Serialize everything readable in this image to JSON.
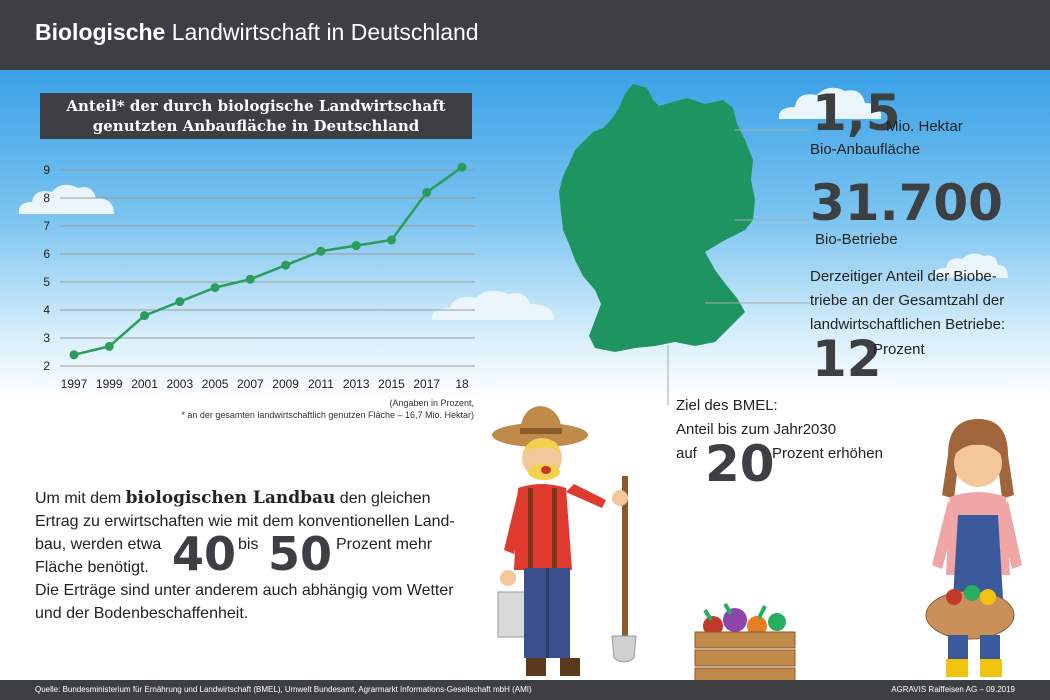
{
  "header": {
    "title_bold": "Biologische",
    "title_rest": " Landwirtschaft in Deutschland"
  },
  "chart_data": {
    "type": "line",
    "title": "Anteil* der durch biologische Landwirtschaft genutzten Anbaufläche in Deutschland",
    "title_line1": "Anteil* der durch biologische Landwirtschaft",
    "title_line2": "genutzten Anbaufläche in Deutschland",
    "categories": [
      "1997",
      "1999",
      "2001",
      "2003",
      "2005",
      "2007",
      "2009",
      "2011",
      "2013",
      "2015",
      "2017",
      "18"
    ],
    "series": [
      {
        "values": [
          2.4,
          2.7,
          3.8,
          4.3,
          4.8,
          5.1,
          5.6,
          6.1,
          6.3,
          6.5,
          8.2,
          9.1
        ]
      }
    ],
    "ylim": [
      2,
      9
    ],
    "yticks": [
      "2",
      "3",
      "4",
      "5",
      "6",
      "7",
      "8",
      "9"
    ],
    "grid": true,
    "line_color": "#2a9d5c",
    "note_line1": "(Angaben in  Prozent,",
    "note_line2": "* an der gesamten landwirtschaftlich genutzen Fläche – 16,7 Mio. Hektar)"
  },
  "stats": {
    "area_value": "1,5",
    "area_unit": "Mio. Hektar",
    "area_label": "Bio-Anbaufläche",
    "farms_value": "31.700",
    "farms_label": "Bio-Betriebe",
    "share_line1": "Derzeitiger Anteil der Biobe-",
    "share_line2": "triebe an der  Gesamtzahl der",
    "share_line3": "landwirtschaftlichen Betriebe:",
    "share_value": "12",
    "share_unit": "Prozent",
    "goal_line1": "Ziel des BMEL:",
    "goal_line2": "Anteil bis zum Jahr2030",
    "goal_prefix": "auf",
    "goal_value": "20",
    "goal_unit": "Prozent erhöhen"
  },
  "body": {
    "line1_a": "Um mit dem ",
    "line1_bold": "biologischen Landbau",
    "line1_b": " den gleichen",
    "line2": "Ertrag zu erwirtschaften wie mit dem konventionellen Land-",
    "line3_a": "bau, werden etwa",
    "num_40": "40",
    "bis": "bis",
    "num_50": "50",
    "line3_b": "Prozent mehr",
    "line4": "Fläche benötigt.",
    "line5": "Die Erträge sind unter anderem auch abhängig vom Wetter",
    "line6": "und der Bodenbeschaffenheit."
  },
  "footer": {
    "source": "Quelle: Bundesministerium für Ernährung und Landwirtschaft (BMEL), Umwelt Bundesamt, Agrarmarkt Informations-Gesellschaft mbH (AMI)",
    "credit": "AGRAVIS Raiffeisen AG – 09.2019"
  },
  "colors": {
    "header_bg": "#3d4043",
    "map_green": "#1e9460",
    "sky_top": "#3aa1e6"
  }
}
